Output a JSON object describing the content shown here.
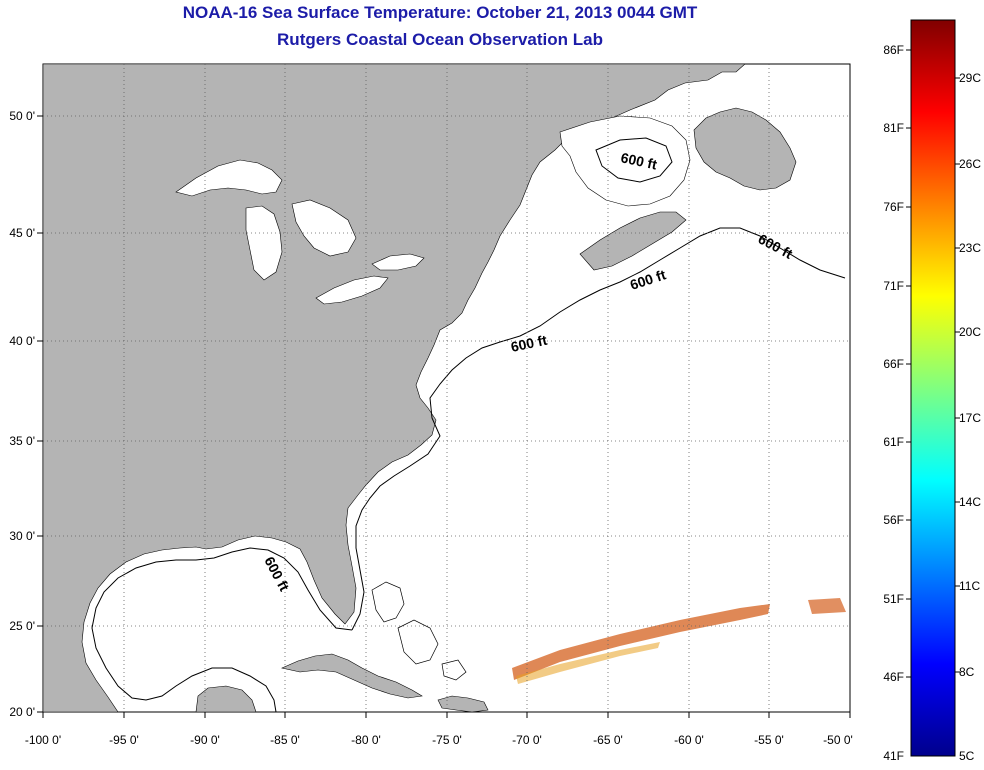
{
  "header": {
    "title": "NOAA-16 Sea Surface Temperature:  October 21, 2013 0044 GMT",
    "subtitle": "Rutgers Coastal Ocean Observation Lab"
  },
  "map": {
    "lon_range": [
      -100,
      -50
    ],
    "lat_range": [
      20,
      52
    ],
    "lon_ticks": [
      "-100 0'",
      "-95 0'",
      "-90 0'",
      "-85 0'",
      "-80 0'",
      "-75 0'",
      "-70 0'",
      "-65 0'",
      "-60 0'",
      "-55 0'",
      "-50 0'"
    ],
    "lat_ticks": [
      "50 0'",
      "45 0'",
      "40 0'",
      "35 0'",
      "30 0'",
      "25 0'",
      "20 0'"
    ],
    "contour_label": "600 ft",
    "colors": {
      "land": "#b4b4b4",
      "ocean": "#ffffff",
      "title": "#1c1ca8"
    }
  },
  "colorbar": {
    "labels_f": [
      "86F",
      "81F",
      "76F",
      "71F",
      "66F",
      "61F",
      "56F",
      "51F",
      "46F",
      "41F"
    ],
    "labels_c": [
      "29C",
      "26C",
      "23C",
      "20C",
      "17C",
      "14C",
      "11C",
      "8C",
      "5C"
    ],
    "stops": [
      "#00008c",
      "#0000ff",
      "#0080ff",
      "#00ffff",
      "#80ff80",
      "#ffff00",
      "#ff8000",
      "#ff0000",
      "#800000"
    ]
  }
}
